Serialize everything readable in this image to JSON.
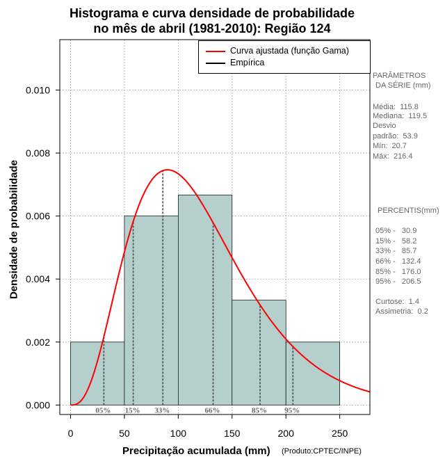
{
  "title_line1": "Histograma e curva densidade de probabilidade",
  "title_line2": "no mês de abril (1981-2010): Região 124",
  "credit": "(Produto:CPTEC/INPE)",
  "legend": {
    "fitted": "Curva ajustada (função Gama)",
    "empirical": "Empírica"
  },
  "params": {
    "header1": "PARÂMETROS",
    "header2": "DA SÉRIE (mm)",
    "mean": "Média:  115.8",
    "median": "Mediana:  119.5",
    "sd1": "Desvio",
    "sd2": "padrão:  53.9",
    "min": "Mín:  20.7",
    "max": "Máx:  216.4"
  },
  "percentiles_box": {
    "header": "PERCENTIS(mm)",
    "p05": "05% -   30.9",
    "p15": "15% -   58.2",
    "p33": "33% -   85.7",
    "p66": "66% -   132.4",
    "p85": "85% -   176.0",
    "p95": "95% -   206.5",
    "kurtosis": "Curtose:  1.4",
    "skewness": "Assimetria:  0.2"
  },
  "colors": {
    "bars": "#b5cfcd",
    "curve": "#ff0000",
    "grid": "#aaaaaa",
    "percentile": "#555555"
  },
  "chart_data": {
    "type": "bar",
    "xlabel": "Precipitação acumulada (mm)",
    "ylabel": "Densidade de probabilidade",
    "xlim": [
      -10,
      278
    ],
    "ylim": [
      -0.0003,
      0.0116
    ],
    "xticks": [
      0,
      50,
      100,
      150,
      200,
      250
    ],
    "yticks": [
      0.0,
      0.002,
      0.004,
      0.006,
      0.008,
      0.01
    ],
    "ytick_labels": [
      "0.000",
      "0.002",
      "0.004",
      "0.006",
      "0.008",
      "0.010"
    ],
    "grid": true,
    "legend_position": "top-right",
    "histogram": {
      "bins": [
        [
          0,
          50
        ],
        [
          50,
          100
        ],
        [
          100,
          150
        ],
        [
          150,
          200
        ],
        [
          200,
          250
        ]
      ],
      "values": [
        0.002,
        0.006,
        0.00667,
        0.00333,
        0.002
      ]
    },
    "gamma_fit": {
      "shape": 4.0,
      "scale": 30.0,
      "name": "Curva ajustada (função Gama)"
    },
    "percentiles": [
      {
        "label": "05%",
        "value": 30.9
      },
      {
        "label": "15%",
        "value": 58.2
      },
      {
        "label": "33%",
        "value": 85.7
      },
      {
        "label": "66%",
        "value": 132.4
      },
      {
        "label": "85%",
        "value": 176.0
      },
      {
        "label": "95%",
        "value": 206.5
      }
    ]
  }
}
